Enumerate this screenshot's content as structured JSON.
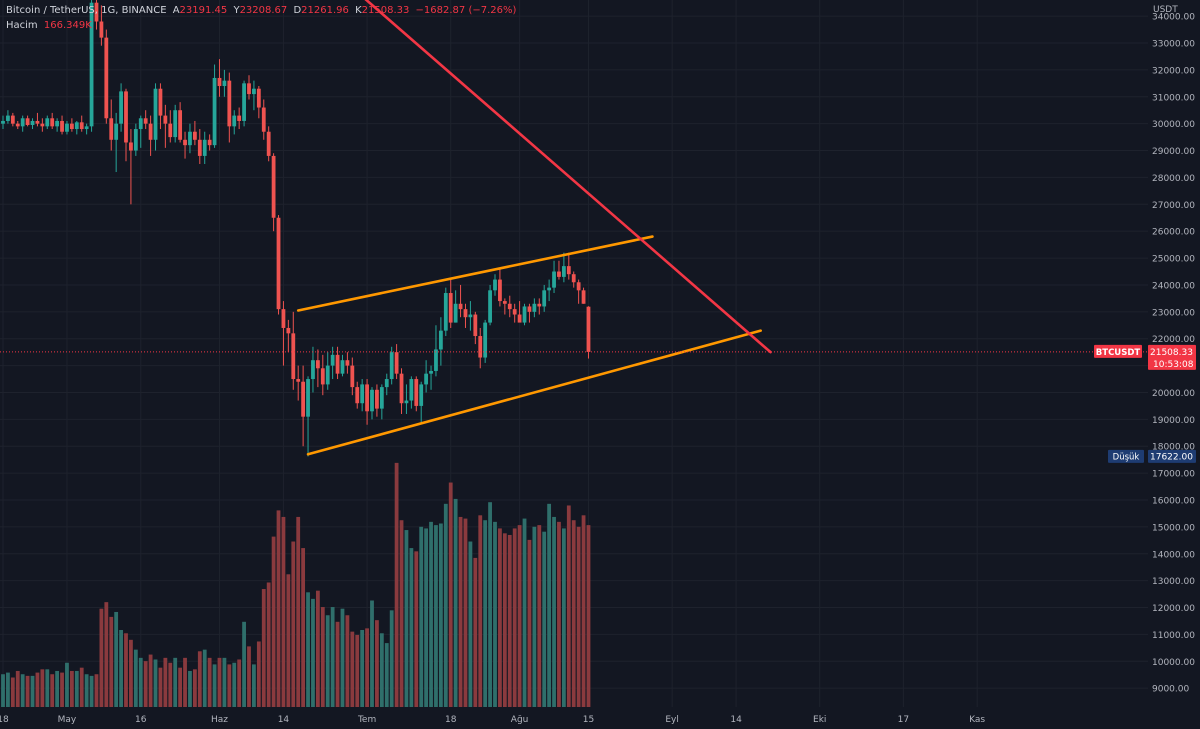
{
  "legend": {
    "symbol": "Bitcoin / TetherUS, 1G, BINANCE",
    "open_label": "A",
    "open": "23191.45",
    "high_label": "Y",
    "high": "23208.67",
    "low_label": "D",
    "low": "21261.96",
    "close_label": "K",
    "close": "21508.33",
    "change": "−1682.87 (−7.26%)",
    "volume_label": "Hacim",
    "volume": "166.349K"
  },
  "colors": {
    "background": "#131722",
    "up": "#26a69a",
    "down": "#ef5350",
    "up_volume": "#2f6f6b",
    "down_volume": "#8a3a3e",
    "channel": "#ff9800",
    "trendline": "#f23645",
    "grid": "#1e222d",
    "axis_text": "#b2b5be"
  },
  "chart_data": {
    "type": "candlestick",
    "price_axis": {
      "unit": "USDT",
      "ticks": [
        34000,
        33000,
        32000,
        31000,
        30000,
        29000,
        28000,
        27000,
        26000,
        25000,
        24000,
        23000,
        22000,
        21000,
        20000,
        19000,
        18000,
        17000,
        16000,
        15000,
        14000,
        13000,
        12000,
        11000,
        10000,
        9000
      ],
      "range": [
        8300,
        34600
      ]
    },
    "time_axis": {
      "ticks": [
        {
          "label": "18",
          "day": 0
        },
        {
          "label": "May",
          "day": 13
        },
        {
          "label": "16",
          "day": 28
        },
        {
          "label": "Haz",
          "day": 44
        },
        {
          "label": "14",
          "day": 57
        },
        {
          "label": "Tem",
          "day": 74
        },
        {
          "label": "18",
          "day": 91
        },
        {
          "label": "Ağu",
          "day": 105
        },
        {
          "label": "15",
          "day": 119
        },
        {
          "label": "Eyl",
          "day": 136
        },
        {
          "label": "14",
          "day": 149
        },
        {
          "label": "Eki",
          "day": 166
        },
        {
          "label": "17",
          "day": 183
        },
        {
          "label": "Kas",
          "day": 198
        }
      ]
    },
    "volume_scale_max": 15000,
    "candles": [
      [
        30000,
        30300,
        29800,
        30100,
        2000
      ],
      [
        30100,
        30500,
        30000,
        30300,
        2100
      ],
      [
        30300,
        30400,
        29900,
        30000,
        1800
      ],
      [
        30000,
        30100,
        29800,
        29900,
        2200
      ],
      [
        29900,
        30300,
        29700,
        30200,
        2000
      ],
      [
        30200,
        30300,
        29900,
        29950,
        1900
      ],
      [
        29950,
        30200,
        29800,
        30100,
        1900
      ],
      [
        30100,
        30400,
        29900,
        30000,
        2100
      ],
      [
        30000,
        30200,
        29700,
        29900,
        2300
      ],
      [
        29900,
        30300,
        29800,
        30200,
        2300
      ],
      [
        30200,
        30400,
        29800,
        29900,
        2000
      ],
      [
        29900,
        30200,
        29700,
        30100,
        2200
      ],
      [
        30100,
        30300,
        29600,
        29700,
        2100
      ],
      [
        29700,
        30100,
        29600,
        30000,
        2700
      ],
      [
        30000,
        30200,
        29700,
        29800,
        2200
      ],
      [
        29800,
        30100,
        29600,
        30050,
        2200
      ],
      [
        30050,
        30300,
        29700,
        29800,
        2400
      ],
      [
        29800,
        30000,
        29600,
        29900,
        2000
      ],
      [
        29900,
        35000,
        29700,
        34500,
        1900
      ],
      [
        34500,
        34800,
        33500,
        33800,
        2000
      ],
      [
        33800,
        34400,
        32900,
        33200,
        6000
      ],
      [
        33200,
        33500,
        30000,
        30200,
        6400
      ],
      [
        30200,
        30900,
        29000,
        29400,
        5500
      ],
      [
        29400,
        30400,
        28200,
        30000,
        5800
      ],
      [
        30000,
        31500,
        29700,
        31200,
        4700
      ],
      [
        31200,
        31300,
        28600,
        29300,
        4500
      ],
      [
        29300,
        29800,
        27000,
        29000,
        4100
      ],
      [
        29000,
        30000,
        28800,
        29800,
        3500
      ],
      [
        29800,
        30300,
        29100,
        30200,
        3000
      ],
      [
        30200,
        30500,
        29800,
        30000,
        2800
      ],
      [
        30000,
        30300,
        28800,
        29400,
        3200
      ],
      [
        29400,
        31500,
        29000,
        31300,
        2900
      ],
      [
        31300,
        31500,
        29800,
        30300,
        2400
      ],
      [
        30300,
        30700,
        29100,
        30000,
        3000
      ],
      [
        30000,
        30500,
        29300,
        29500,
        2700
      ],
      [
        29500,
        30700,
        29300,
        30500,
        3000
      ],
      [
        30500,
        30800,
        29300,
        29400,
        2400
      ],
      [
        29400,
        29700,
        28700,
        29200,
        3000
      ],
      [
        29200,
        30000,
        28900,
        29700,
        2200
      ],
      [
        29700,
        30100,
        29200,
        29400,
        2300
      ],
      [
        29400,
        29800,
        28500,
        28800,
        3400
      ],
      [
        28800,
        29700,
        28500,
        29400,
        3500
      ],
      [
        29400,
        29600,
        29000,
        29200,
        3000
      ],
      [
        29200,
        32200,
        29100,
        31700,
        2600
      ],
      [
        31700,
        32400,
        31000,
        31400,
        3000
      ],
      [
        31400,
        32000,
        31000,
        31600,
        3000
      ],
      [
        31600,
        31900,
        29300,
        29900,
        2600
      ],
      [
        29900,
        30500,
        29600,
        30300,
        2700
      ],
      [
        30300,
        30600,
        29800,
        30100,
        2900
      ],
      [
        30100,
        31600,
        29900,
        31500,
        5200
      ],
      [
        31500,
        31800,
        30900,
        31100,
        3700
      ],
      [
        31100,
        31600,
        30500,
        31300,
        2600
      ],
      [
        31300,
        31400,
        30200,
        30600,
        4000
      ],
      [
        30600,
        30900,
        29400,
        29700,
        7200
      ],
      [
        29700,
        29900,
        28600,
        28800,
        7600
      ],
      [
        28800,
        28900,
        26000,
        26500,
        10400
      ],
      [
        26500,
        26600,
        22900,
        23100,
        12000
      ],
      [
        23100,
        23400,
        21000,
        22400,
        11600
      ],
      [
        22400,
        22700,
        21500,
        22200,
        8100
      ],
      [
        22200,
        23000,
        20100,
        20500,
        10100
      ],
      [
        20500,
        21000,
        19700,
        20400,
        11600
      ],
      [
        20400,
        21000,
        18000,
        19100,
        9700
      ],
      [
        19100,
        20600,
        17622,
        20500,
        7000
      ],
      [
        20500,
        21700,
        20000,
        21200,
        6600
      ],
      [
        21200,
        21600,
        20200,
        20900,
        7100
      ],
      [
        20900,
        21400,
        19900,
        20300,
        6100
      ],
      [
        20300,
        21500,
        20100,
        21000,
        5600
      ],
      [
        21000,
        21700,
        20500,
        21400,
        6100
      ],
      [
        21400,
        21700,
        20500,
        20700,
        5200
      ],
      [
        20700,
        21400,
        20600,
        21200,
        6000
      ],
      [
        21200,
        21500,
        20700,
        21000,
        5600
      ],
      [
        21000,
        21300,
        19900,
        20200,
        4600
      ],
      [
        20200,
        20400,
        19400,
        19600,
        4400
      ],
      [
        19600,
        20500,
        19300,
        20300,
        4700
      ],
      [
        20300,
        20500,
        18800,
        19300,
        4800
      ],
      [
        19300,
        20200,
        19000,
        20100,
        6500
      ],
      [
        20100,
        20300,
        19100,
        19400,
        5300
      ],
      [
        19400,
        20300,
        19000,
        20200,
        4500
      ],
      [
        20200,
        20700,
        19900,
        20500,
        3900
      ],
      [
        20500,
        21700,
        20300,
        21500,
        5900
      ],
      [
        21500,
        21800,
        20500,
        20700,
        14900
      ],
      [
        20700,
        20900,
        19200,
        19600,
        11400
      ],
      [
        19600,
        20300,
        19200,
        19700,
        10800
      ],
      [
        19700,
        20600,
        19400,
        20500,
        9700
      ],
      [
        20500,
        20600,
        19300,
        19500,
        9500
      ],
      [
        19500,
        20400,
        18900,
        20300,
        11000
      ],
      [
        20300,
        21200,
        20000,
        20700,
        10900
      ],
      [
        20700,
        21000,
        20100,
        20800,
        11300
      ],
      [
        20800,
        22500,
        20600,
        21600,
        11100
      ],
      [
        21600,
        22800,
        21000,
        22300,
        11200
      ],
      [
        22300,
        23900,
        22100,
        23700,
        12400
      ],
      [
        23700,
        24200,
        22400,
        22600,
        13700
      ],
      [
        22600,
        23800,
        22600,
        23300,
        12700
      ],
      [
        23300,
        24000,
        22800,
        23100,
        11600
      ],
      [
        23100,
        23300,
        22400,
        22800,
        11500
      ],
      [
        22800,
        23400,
        22300,
        22900,
        10100
      ],
      [
        22900,
        23000,
        21800,
        22100,
        9100
      ],
      [
        22100,
        22400,
        20900,
        21300,
        11700
      ],
      [
        21300,
        22700,
        21100,
        22600,
        11400
      ],
      [
        22600,
        24000,
        22500,
        23800,
        12500
      ],
      [
        23800,
        24400,
        23600,
        24200,
        11300
      ],
      [
        24200,
        24600,
        23200,
        23400,
        10900
      ],
      [
        23400,
        23500,
        22900,
        23300,
        10600
      ],
      [
        23300,
        23600,
        22800,
        23100,
        10500
      ],
      [
        23100,
        23300,
        22600,
        22900,
        10900
      ],
      [
        22900,
        23400,
        22700,
        22600,
        11100
      ],
      [
        22600,
        23300,
        22500,
        23200,
        11500
      ],
      [
        23200,
        23300,
        22600,
        23000,
        10200
      ],
      [
        23000,
        23500,
        22800,
        23300,
        11000
      ],
      [
        23300,
        23500,
        22900,
        23200,
        11100
      ],
      [
        23200,
        24000,
        23000,
        23800,
        10700
      ],
      [
        23800,
        24200,
        23400,
        23900,
        12400
      ],
      [
        23900,
        24900,
        23700,
        24500,
        11600
      ],
      [
        24500,
        24900,
        24200,
        24300,
        11300
      ],
      [
        24300,
        25200,
        24100,
        24700,
        10900
      ],
      [
        24700,
        25200,
        24200,
        24400,
        12300
      ],
      [
        24400,
        24500,
        23900,
        24100,
        11400
      ],
      [
        24100,
        24200,
        23300,
        23800,
        11000
      ],
      [
        23800,
        23900,
        23300,
        23300,
        11700
      ],
      [
        23191.45,
        23208.67,
        21261.96,
        21508.33,
        11100
      ]
    ],
    "channel_top": [
      {
        "day": 60,
        "price": 23050
      },
      {
        "day": 132,
        "price": 25800
      }
    ],
    "channel_bottom": [
      {
        "day": 62,
        "price": 17700
      },
      {
        "day": 154,
        "price": 22300
      }
    ],
    "trendline": [
      {
        "day": 40,
        "price": 40000
      },
      {
        "day": 156,
        "price": 21500
      }
    ],
    "last_price": {
      "label": "BTCUSDT",
      "value": "21508.33",
      "countdown": "10:53:08",
      "price": 21508.33
    },
    "low_marker": {
      "label": "Düşük",
      "value": "17622.00",
      "price": 17622
    }
  }
}
